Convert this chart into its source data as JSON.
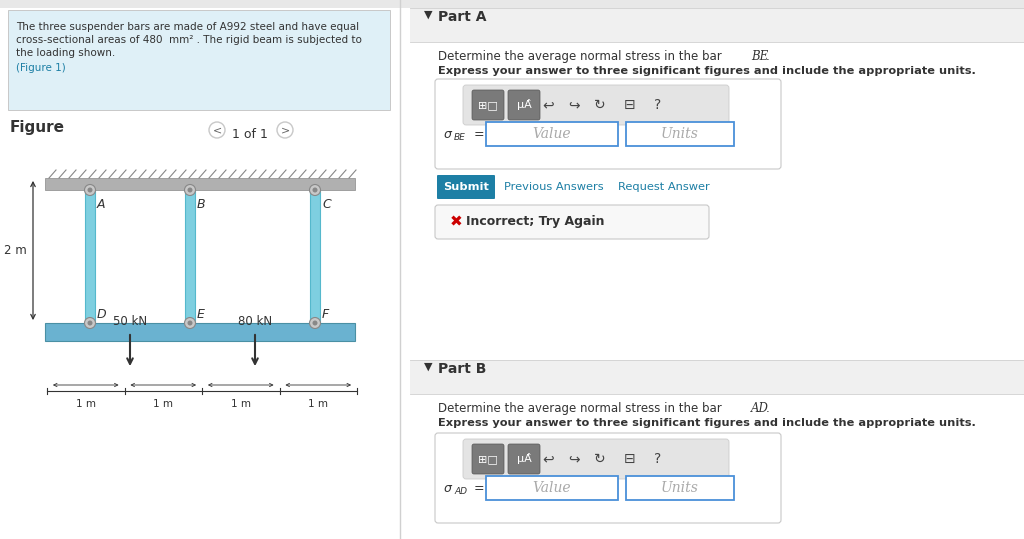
{
  "left_panel_bg": "#dff0f7",
  "right_panel_bg": "#f0f0f0",
  "white": "#ffffff",
  "part_a_label": "Part A",
  "part_a_desc1": "Determine the average normal stress in the bar ",
  "part_a_bar": "BE",
  "part_a_inst": "Express your answer to three significant figures and include the appropriate units.",
  "part_b_label": "Part B",
  "part_b_desc1": "Determine the average normal stress in the bar ",
  "part_b_bar": "AD",
  "part_b_inst": "Express your answer to three significant figures and include the appropriate units.",
  "submit_color": "#1d7fa5",
  "link_color": "#1d7fa5",
  "incorrect_red": "#cc0000",
  "border_color": "#c8c8c8",
  "input_border": "#4a90d9",
  "divider_color": "#d0d0d0",
  "text_dark": "#333333",
  "text_gray": "#666666",
  "toolbar_bg_inner": "#e0e0e0",
  "btn_gray": "#7a7a7a",
  "bar_color": "#7ecfe0",
  "bar_edge": "#55b8cc",
  "beam_color": "#6ab2d0",
  "beam_edge": "#4a90a4",
  "ceil_color": "#b0b0b0",
  "hatch_color": "#888888"
}
